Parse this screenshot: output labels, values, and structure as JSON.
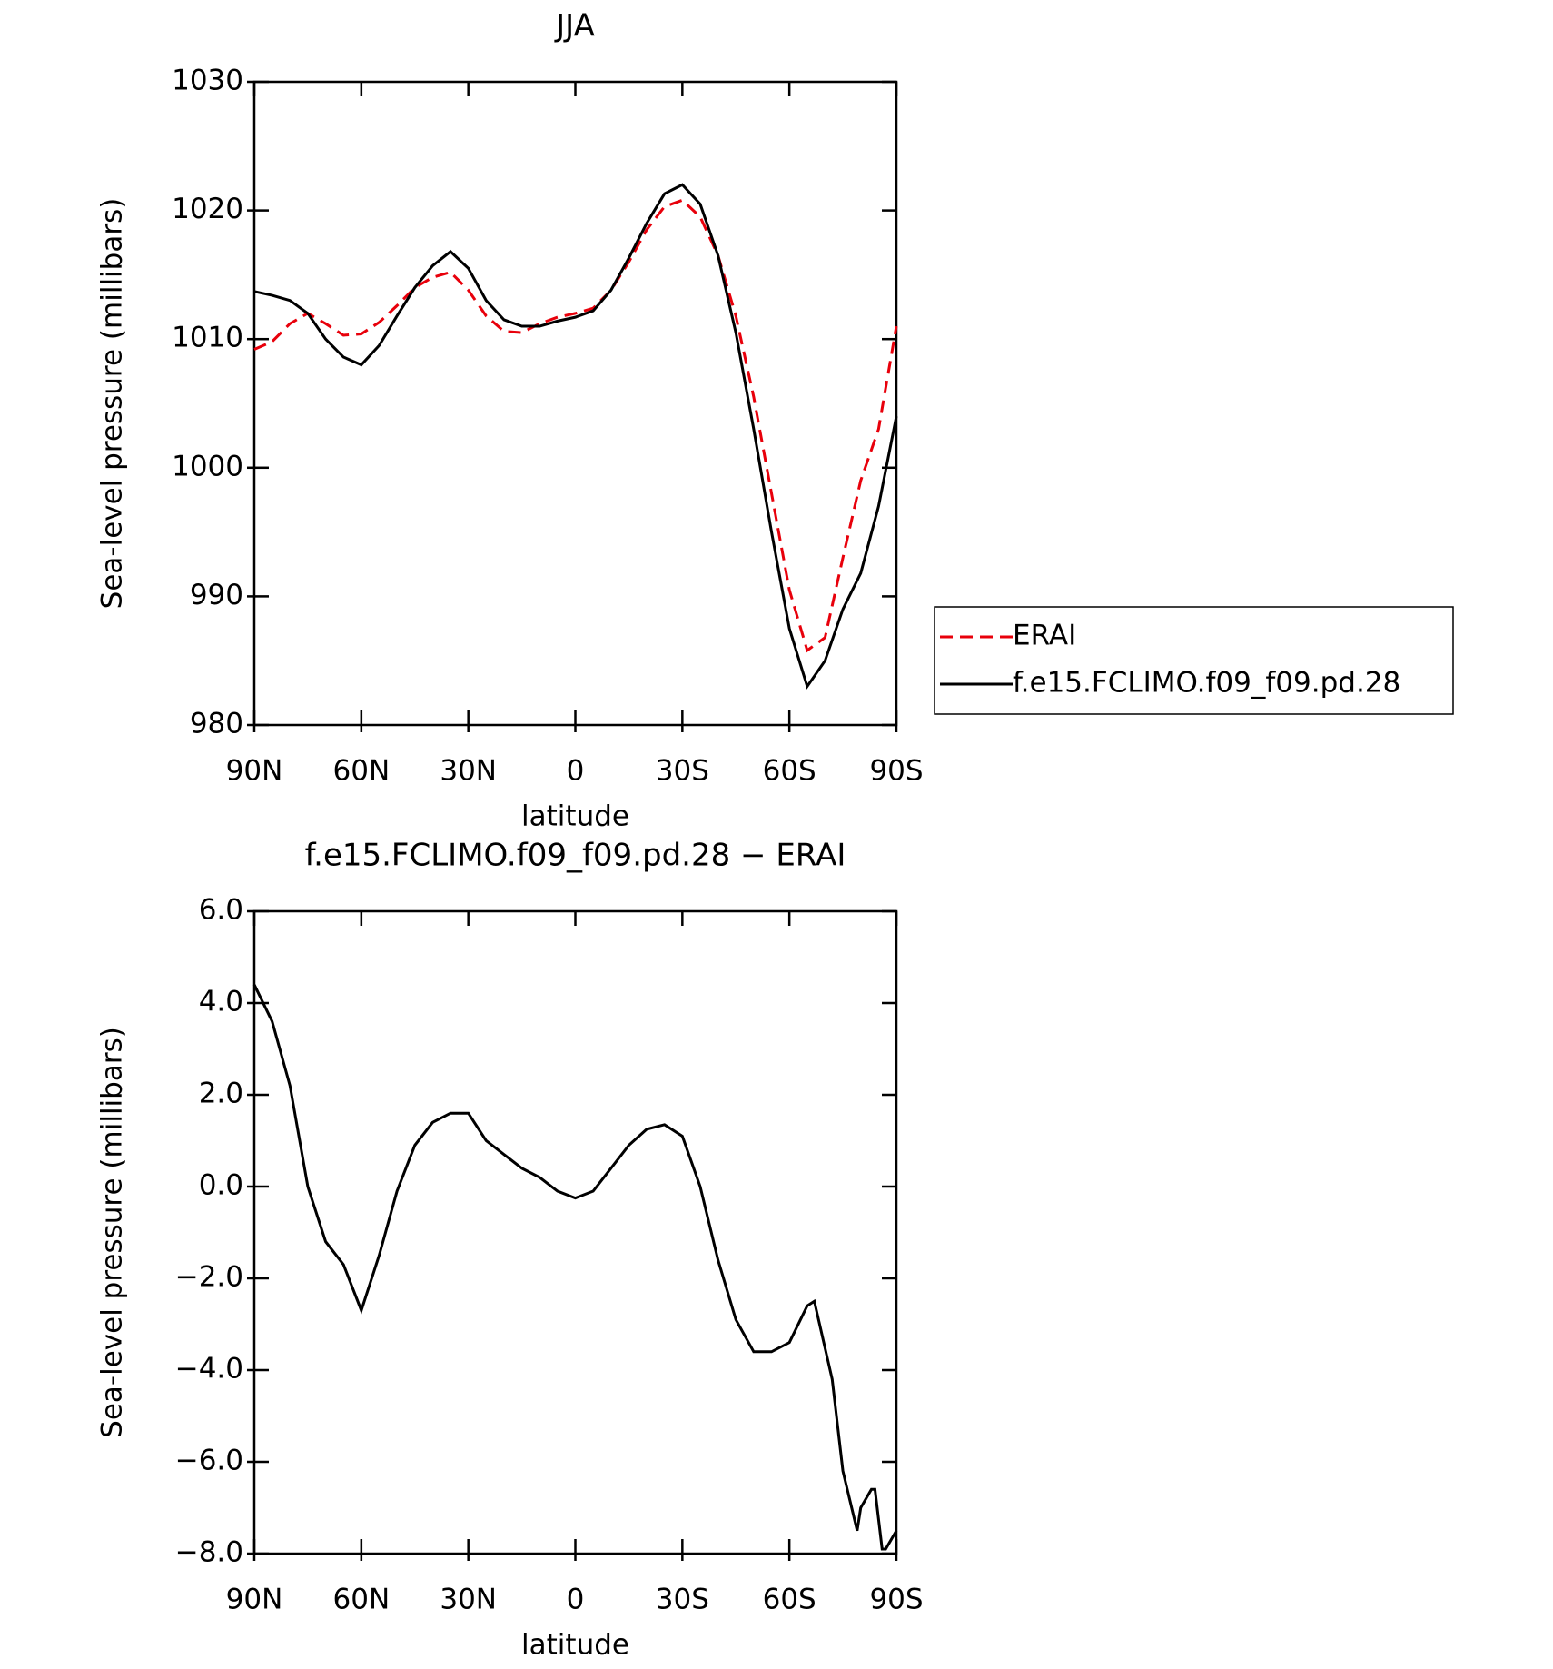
{
  "chart_data": [
    {
      "type": "line",
      "title": "JJA",
      "ylabel": "Sea-level pressure (millibars)",
      "xlabel": "latitude",
      "x": [
        90,
        85,
        80,
        75,
        70,
        65,
        60,
        55,
        50,
        45,
        40,
        35,
        30,
        25,
        20,
        15,
        10,
        5,
        0,
        -5,
        -10,
        -15,
        -20,
        -25,
        -30,
        -35,
        -40,
        -45,
        -50,
        -55,
        -60,
        -65,
        -70,
        -75,
        -80,
        -85,
        -90
      ],
      "xlim": [
        90,
        -90
      ],
      "xticks": [
        {
          "value": 90,
          "label": "90N"
        },
        {
          "value": 60,
          "label": "60N"
        },
        {
          "value": 30,
          "label": "30N"
        },
        0,
        {
          "value": -30,
          "label": "30S"
        },
        {
          "value": -60,
          "label": "60S"
        },
        {
          "value": -90,
          "label": "90S"
        }
      ],
      "ylim": [
        980,
        1030
      ],
      "yticks": [
        980,
        990,
        1000,
        1010,
        1020,
        1030
      ],
      "legend": "right",
      "series": [
        {
          "name": "ERAI",
          "color": "#e8000b",
          "dashed": true,
          "values": [
            1009.2,
            1009.8,
            1011.2,
            1012.0,
            1011.2,
            1010.3,
            1010.4,
            1011.3,
            1012.6,
            1014.0,
            1014.8,
            1015.2,
            1013.8,
            1011.8,
            1010.6,
            1010.5,
            1011.2,
            1011.7,
            1012.0,
            1012.4,
            1013.8,
            1016.0,
            1018.5,
            1020.3,
            1020.8,
            1019.5,
            1016.5,
            1011.8,
            1005.5,
            998.0,
            990.5,
            985.8,
            986.8,
            993.0,
            999.0,
            1003.0,
            1011.0
          ]
        },
        {
          "name": "f.e15.FCLIMO.f09_f09.pd.28",
          "color": "#000000",
          "dashed": false,
          "values": [
            1013.7,
            1013.4,
            1013.0,
            1012.0,
            1010.0,
            1008.6,
            1008.0,
            1009.5,
            1011.8,
            1014.0,
            1015.7,
            1016.8,
            1015.5,
            1013.0,
            1011.5,
            1011.0,
            1011.0,
            1011.4,
            1011.7,
            1012.2,
            1013.8,
            1016.3,
            1019.0,
            1021.3,
            1022.0,
            1020.5,
            1016.5,
            1010.5,
            1003.0,
            995.0,
            987.5,
            983.0,
            985.0,
            989.0,
            991.8,
            997.0,
            1004.0
          ]
        }
      ]
    },
    {
      "type": "line",
      "title": "f.e15.FCLIMO.f09_f09.pd.28 − ERAI",
      "ylabel": "Sea-level pressure (millibars)",
      "xlabel": "latitude",
      "x": [
        90,
        85,
        80,
        75,
        70,
        65,
        60,
        55,
        50,
        45,
        40,
        35,
        30,
        25,
        20,
        15,
        10,
        5,
        0,
        -5,
        -10,
        -15,
        -20,
        -25,
        -30,
        -35,
        -40,
        -45,
        -50,
        -55,
        -60,
        -65,
        -67,
        -72,
        -75,
        -79,
        -80,
        -83,
        -84,
        -86,
        -87,
        -90
      ],
      "xlim": [
        90,
        -90
      ],
      "xticks": [
        {
          "value": 90,
          "label": "90N"
        },
        {
          "value": 60,
          "label": "60N"
        },
        {
          "value": 30,
          "label": "30N"
        },
        0,
        {
          "value": -30,
          "label": "30S"
        },
        {
          "value": -60,
          "label": "60S"
        },
        {
          "value": -90,
          "label": "90S"
        }
      ],
      "ylim": [
        -8,
        6
      ],
      "yticks": [
        {
          "value": -8,
          "label": "−8.0"
        },
        {
          "value": -6,
          "label": "−6.0"
        },
        {
          "value": -4,
          "label": "−4.0"
        },
        {
          "value": -2,
          "label": "−2.0"
        },
        {
          "value": 0,
          "label": "0.0"
        },
        {
          "value": 2,
          "label": "2.0"
        },
        {
          "value": 4,
          "label": "4.0"
        },
        {
          "value": 6,
          "label": "6.0"
        }
      ],
      "series": [
        {
          "color": "#000000",
          "dashed": false,
          "values": [
            4.4,
            3.6,
            2.2,
            0.0,
            -1.2,
            -1.7,
            -2.7,
            -1.5,
            -0.1,
            0.9,
            1.4,
            1.6,
            1.6,
            1.0,
            0.7,
            0.4,
            0.2,
            -0.1,
            -0.25,
            -0.1,
            0.4,
            0.9,
            1.25,
            1.35,
            1.1,
            0.0,
            -1.6,
            -2.9,
            -3.6,
            -3.6,
            -3.4,
            -2.6,
            -2.5,
            -4.2,
            -6.2,
            -7.5,
            -7.0,
            -6.6,
            -6.6,
            -7.9,
            -7.9,
            -7.5
          ]
        }
      ]
    }
  ]
}
